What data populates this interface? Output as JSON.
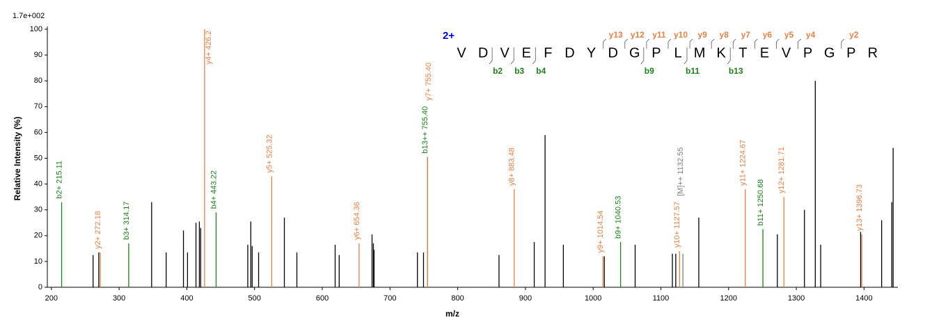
{
  "chart_data": {
    "type": "spectrum",
    "scale_label": "1.7e+002",
    "xlabel": "m/z",
    "ylabel": "Relative  Intensity (%)",
    "xlim": [
      194,
      1450
    ],
    "ylim": [
      0,
      100
    ],
    "xticks": [
      200,
      300,
      400,
      500,
      600,
      700,
      800,
      900,
      1000,
      1100,
      1200,
      1300,
      1400
    ],
    "yticks": [
      0,
      10,
      20,
      30,
      40,
      50,
      60,
      70,
      80,
      90,
      100
    ],
    "x": [
      215.11,
      261.6,
      270.0,
      272.18,
      314.17,
      348.0,
      369.5,
      395.0,
      401.0,
      413.5,
      418.5,
      420.5,
      426.2,
      443.22,
      490.0,
      494.5,
      496.5,
      506.0,
      525.32,
      544.0,
      562.5,
      619.0,
      625.0,
      654.36,
      673.5,
      675.5,
      676.5,
      740.5,
      749.5,
      755.4,
      755.4,
      861.0,
      883.48,
      913.0,
      929.0,
      956.0,
      1014.54,
      1016.5,
      1040.53,
      1062.0,
      1117.0,
      1122.0,
      1127.57,
      1132.55,
      1156.0,
      1224.67,
      1250.68,
      1272.0,
      1281.71,
      1312.0,
      1328.0,
      1336.0,
      1395.0,
      1396.73,
      1426.0,
      1441.0,
      1443.0
    ],
    "values": [
      33,
      12.5,
      13.5,
      13.5,
      17,
      33,
      13.5,
      22,
      13.5,
      25,
      25.5,
      23,
      100,
      29,
      16.5,
      25.5,
      16,
      13.5,
      43,
      27,
      13.5,
      16.5,
      12.5,
      17,
      20.5,
      17,
      14.5,
      13.5,
      13.5,
      50.5,
      50.5,
      12.5,
      38,
      17.5,
      59,
      16.5,
      12,
      12,
      17.5,
      16.5,
      13,
      13,
      14,
      13,
      27,
      38,
      22.5,
      20.5,
      35,
      30,
      80,
      16.5,
      21.5,
      20.5,
      26,
      33,
      54
    ],
    "peak_labels": [
      "b2+ 215.11",
      null,
      null,
      "y2+ 272.18",
      "b3+ 314.17",
      null,
      null,
      null,
      null,
      null,
      null,
      null,
      "y4+ 426.2",
      "b4+ 443.22",
      null,
      null,
      null,
      null,
      "y5+ 525.32",
      null,
      null,
      null,
      null,
      "y6+ 654.36",
      null,
      null,
      null,
      null,
      null,
      "b13++ 755.40",
      "y7+ 755.40",
      null,
      "y8+ 883.48",
      null,
      null,
      null,
      "y9+ 1014.54",
      null,
      "b9+ 1040.53",
      null,
      null,
      null,
      "y10+ 1127.57",
      "[M]++ 1132.55",
      null,
      "y11+ 1224.67",
      "b11+ 1250.68",
      null,
      "y12+ 1281.71",
      null,
      null,
      null,
      null,
      "y13+ 1396.73",
      null,
      null,
      null
    ],
    "colors": [
      "#1e7d1e",
      "#000000",
      "#000000",
      "#e0824a",
      "#1e7d1e",
      "#000000",
      "#000000",
      "#000000",
      "#000000",
      "#000000",
      "#000000",
      "#000000",
      "#e0824a",
      "#1e7d1e",
      "#000000",
      "#000000",
      "#000000",
      "#000000",
      "#e0824a",
      "#000000",
      "#000000",
      "#000000",
      "#000000",
      "#e0824a",
      "#000000",
      "#000000",
      "#000000",
      "#000000",
      "#000000",
      "#1e7d1e",
      "#e0824a",
      "#000000",
      "#e0824a",
      "#000000",
      "#000000",
      "#000000",
      "#e0824a",
      "#000000",
      "#1e7d1e",
      "#000000",
      "#000000",
      "#000000",
      "#e0824a",
      "#808080",
      "#000000",
      "#e0824a",
      "#1e7d1e",
      "#000000",
      "#e0824a",
      "#000000",
      "#000000",
      "#000000",
      "#000000",
      "#e0824a",
      "#000000",
      "#000000",
      "#000000"
    ],
    "sequence": {
      "charge": "2+",
      "residues": [
        "V",
        "D",
        "V",
        "E",
        "F",
        "D",
        "Y",
        "D",
        "G",
        "P",
        "L",
        "M",
        "K",
        "T",
        "E",
        "V",
        "P",
        "G",
        "P",
        "R"
      ],
      "y_ions": [
        null,
        null,
        null,
        null,
        null,
        null,
        null,
        "y13",
        "y12",
        "y11",
        "y10",
        "y9",
        "y8",
        "y7",
        "y6",
        "y5",
        "y4",
        null,
        "y2",
        null
      ],
      "b_ions": [
        null,
        "b2",
        "b3",
        "b4",
        null,
        null,
        null,
        null,
        "b9",
        null,
        "b11",
        null,
        "b13",
        null,
        null,
        null,
        null,
        null,
        null,
        null
      ]
    }
  }
}
